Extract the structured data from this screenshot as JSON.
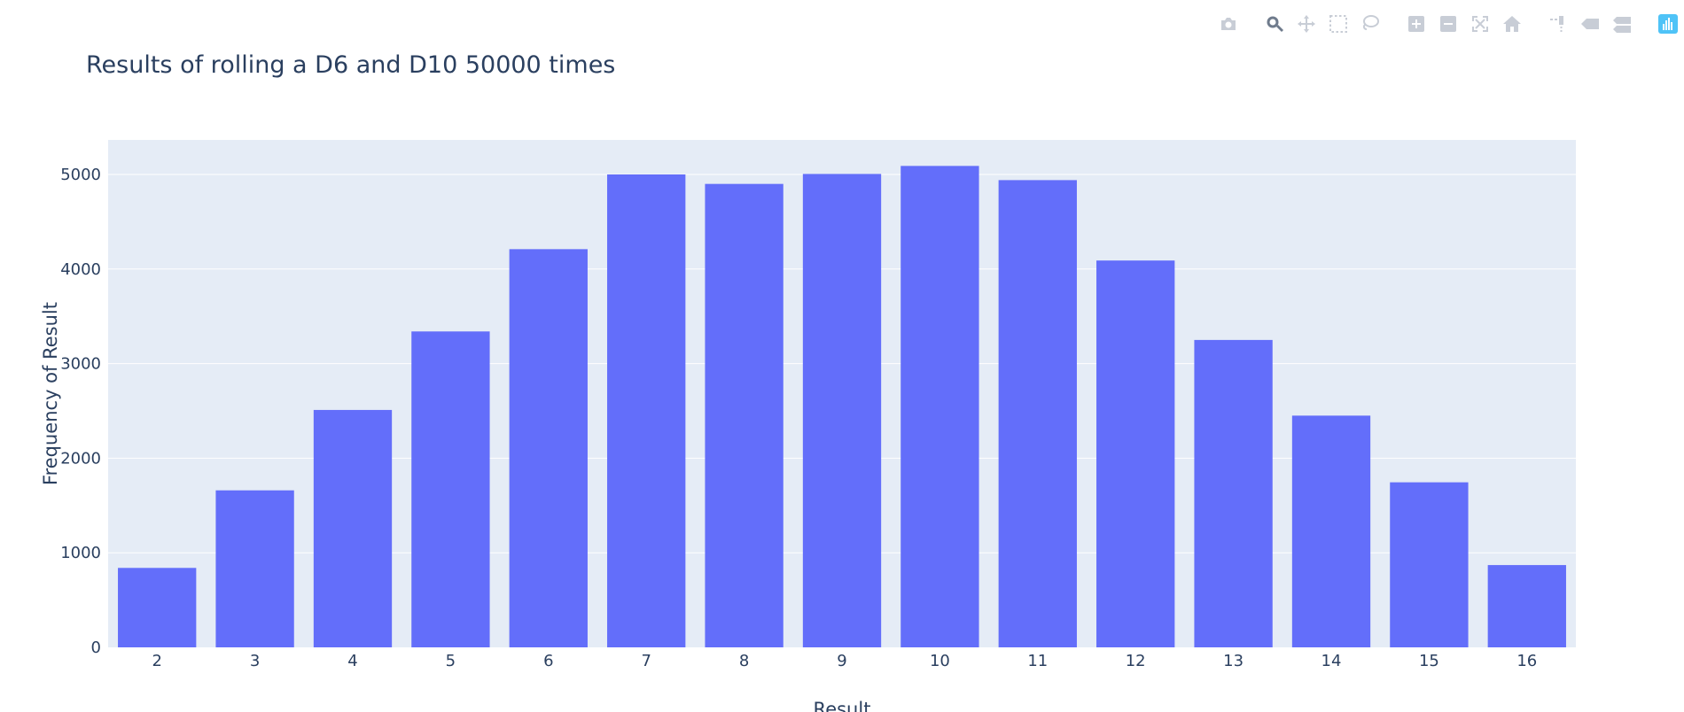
{
  "modebar": {
    "buttons": [
      {
        "name": "download-png-button",
        "icon": "camera-icon",
        "group": 1
      },
      {
        "name": "zoom-button",
        "icon": "zoom-icon",
        "group": 2,
        "active": true
      },
      {
        "name": "pan-button",
        "icon": "pan-icon",
        "group": 2
      },
      {
        "name": "box-select-button",
        "icon": "box-select-icon",
        "group": 2
      },
      {
        "name": "lasso-select-button",
        "icon": "lasso-icon",
        "group": 2
      },
      {
        "name": "zoom-in-button",
        "icon": "plus-square-icon",
        "group": 3
      },
      {
        "name": "zoom-out-button",
        "icon": "minus-square-icon",
        "group": 3
      },
      {
        "name": "autoscale-button",
        "icon": "autoscale-icon",
        "group": 3
      },
      {
        "name": "reset-axes-button",
        "icon": "home-icon",
        "group": 3
      },
      {
        "name": "toggle-spike-lines-button",
        "icon": "spikeline-icon",
        "group": 4
      },
      {
        "name": "hover-closest-button",
        "icon": "tag-icon",
        "group": 4
      },
      {
        "name": "hover-compare-button",
        "icon": "double-tag-icon",
        "group": 4
      },
      {
        "name": "plotly-logo-link",
        "icon": "plotly-logo-icon",
        "group": 5
      }
    ]
  },
  "colors": {
    "bar": "#636efa",
    "plot_bg": "#e5ecf6",
    "grid": "#ffffff",
    "text": "#2a3f5f"
  },
  "chart_data": {
    "type": "bar",
    "title": "Results of rolling a D6 and D10 50000 times",
    "xlabel": "Result",
    "ylabel": "Frequency of Result",
    "categories": [
      "2",
      "3",
      "4",
      "5",
      "6",
      "7",
      "8",
      "9",
      "10",
      "11",
      "12",
      "13",
      "14",
      "15",
      "16"
    ],
    "values": [
      840,
      1660,
      2510,
      3340,
      4210,
      5000,
      4900,
      5005,
      5090,
      4940,
      4090,
      3250,
      2450,
      1745,
      870
    ],
    "ylim": [
      0,
      5365
    ],
    "yticks": [
      0,
      1000,
      2000,
      3000,
      4000,
      5000
    ],
    "grid": true,
    "legend": "none"
  }
}
